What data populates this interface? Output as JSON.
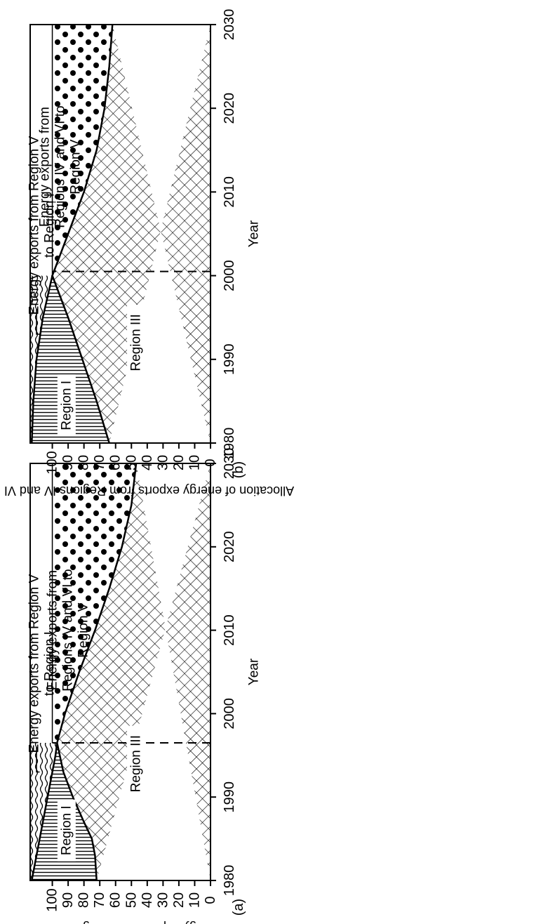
{
  "chart_data": [
    {
      "type": "area",
      "panel_label": "(a)",
      "xlabel": "Year",
      "ylabel": "Allocation of energy exports from Regions IV and VI (per cent)",
      "x_ticks": [
        "1980",
        "1990",
        "2000",
        "2010",
        "2020",
        "2030"
      ],
      "y_ticks": [
        "0",
        "10",
        "20",
        "30",
        "40",
        "50",
        "60",
        "70",
        "80",
        "90",
        "100"
      ],
      "xlim": [
        1980,
        2030
      ],
      "ylim": [
        0,
        114
      ],
      "dashed_line_year": 1996.5,
      "boundaries": {
        "region3_top": [
          [
            1980,
            72
          ],
          [
            1983,
            73
          ],
          [
            1985,
            75
          ],
          [
            1987,
            80
          ],
          [
            1990,
            87
          ],
          [
            1993,
            93
          ],
          [
            1996.5,
            97
          ],
          [
            2000,
            92
          ],
          [
            2005,
            83
          ],
          [
            2010,
            73
          ],
          [
            2015,
            64
          ],
          [
            2020,
            56
          ],
          [
            2025,
            50
          ],
          [
            2030,
            47
          ]
        ],
        "region1_top": [
          [
            1980,
            113
          ],
          [
            1983,
            110
          ],
          [
            1986,
            107
          ],
          [
            1989,
            104
          ],
          [
            1992,
            101
          ],
          [
            1995,
            98
          ],
          [
            1996.5,
            97
          ]
        ]
      },
      "regions": {
        "region3": "Region III",
        "region1": "Region I",
        "region5_from_region1": [
          "Energy exports from",
          "Regions IV and VI to",
          "Region V"
        ],
        "region5_to_region1": [
          "Energy exports from Region V",
          "to Region I"
        ]
      }
    },
    {
      "type": "area",
      "panel_label": "(b)",
      "xlabel": "Year",
      "ylabel": "Allocation of energy exports from Regions IV and VI (per cent)",
      "x_ticks": [
        "1980",
        "1990",
        "2000",
        "2010",
        "2020",
        "2030"
      ],
      "y_ticks": [
        "0",
        "10",
        "20",
        "30",
        "40",
        "50",
        "60",
        "70",
        "80",
        "90",
        "100"
      ],
      "xlim": [
        1980,
        2030
      ],
      "ylim": [
        0,
        114
      ],
      "dashed_line_year": 2000.5,
      "boundaries": {
        "region3_top": [
          [
            1980,
            64
          ],
          [
            1985,
            72
          ],
          [
            1990,
            81
          ],
          [
            1995,
            90
          ],
          [
            2000,
            100
          ],
          [
            2005,
            90
          ],
          [
            2010,
            80
          ],
          [
            2015,
            72
          ],
          [
            2020,
            67
          ],
          [
            2025,
            64
          ],
          [
            2030,
            62
          ]
        ],
        "region1_top": [
          [
            1980,
            113
          ],
          [
            1985,
            112
          ],
          [
            1990,
            110
          ],
          [
            1995,
            106
          ],
          [
            2000,
            100
          ]
        ]
      },
      "regions": {
        "region3": "Region III",
        "region1": "Region I",
        "region5_from_region1": [
          "Energy exports from",
          "Regions IV and VI to",
          "Region V"
        ],
        "region5_to_region1": [
          "Energy exports from Region V",
          "to Region I"
        ]
      }
    }
  ]
}
